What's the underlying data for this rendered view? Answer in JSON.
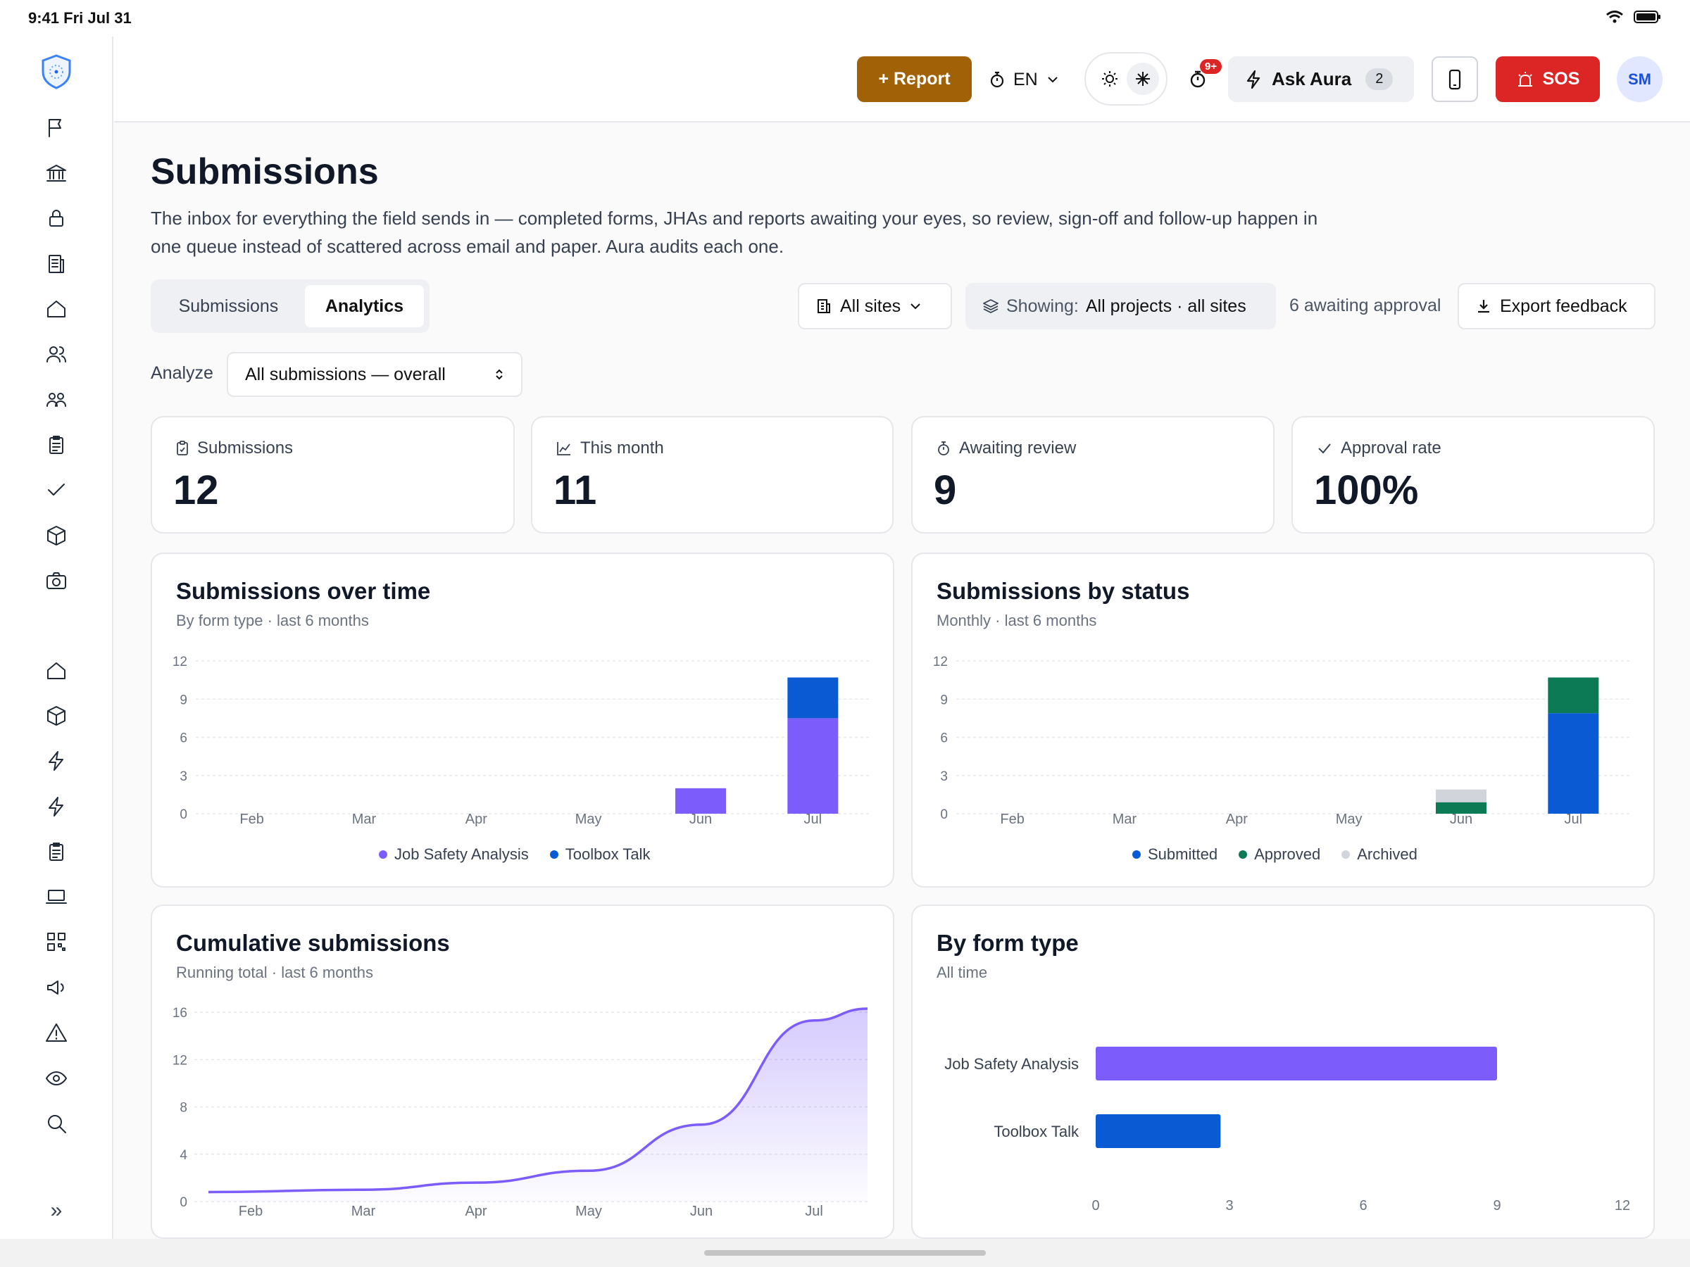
{
  "status_bar": {
    "time": "9:41 Fri Jul 31"
  },
  "sidebar": {
    "icons": [
      "flag-icon",
      "bank-icon",
      "lock-icon",
      "document-icon",
      "home-icon",
      "users-icon",
      "team-icon",
      "clipboard-icon",
      "check-icon",
      "cube-icon",
      "camera-icon",
      "home-icon",
      "cube-icon",
      "lightning-icon",
      "lightning-icon",
      "clipboard-icon",
      "laptop-icon",
      "qr-icon",
      "megaphone-icon",
      "warning-icon",
      "eye-icon",
      "search-icon"
    ],
    "expand_label": "»"
  },
  "topbar": {
    "report_label": "+ Report",
    "language": "EN",
    "notification_badge": "9+",
    "ask_label": "Ask Aura",
    "ask_count": "2",
    "sos_label": "SOS",
    "avatar_initials": "SM"
  },
  "page": {
    "title": "Submissions",
    "description": "The inbox for everything the field sends in — completed forms, JHAs and reports awaiting your eyes, so review, sign-off and follow-up happen in one queue instead of scattered across email and paper. Aura audits each one."
  },
  "tabs": [
    {
      "label": "Submissions",
      "active": false
    },
    {
      "label": "Analytics",
      "active": true
    }
  ],
  "filters": {
    "sites_label": "All sites",
    "showing_label": "Showing:",
    "showing_value": "All projects · all sites",
    "awaiting_text": "6 awaiting approval",
    "export_label": "Export feedback"
  },
  "analyze": {
    "label": "Analyze",
    "selected": "All submissions — overall"
  },
  "stats": [
    {
      "label": "Submissions",
      "value": "12",
      "icon": "clipboard-icon"
    },
    {
      "label": "This month",
      "value": "11",
      "icon": "line-chart-icon"
    },
    {
      "label": "Awaiting review",
      "value": "9",
      "icon": "stopwatch-icon"
    },
    {
      "label": "Approval rate",
      "value": "100%",
      "icon": "check-icon"
    }
  ],
  "charts": {
    "over_time": {
      "title": "Submissions over time",
      "subtitle": "By form type · last 6 months"
    },
    "by_status": {
      "title": "Submissions by status",
      "subtitle": "Monthly · last 6 months"
    },
    "cumulative": {
      "title": "Cumulative submissions",
      "subtitle": "Running total · last 6 months"
    },
    "by_form": {
      "title": "By form type",
      "subtitle": "All time"
    }
  },
  "colors": {
    "jsa": "#7c5cfa",
    "toolbox": "#0a5bd3",
    "submitted": "#0a5bd3",
    "approved": "#0b7a55",
    "archived": "#d1d5db",
    "brand_report": "#a16207",
    "sos": "#dc2626"
  },
  "chart_data": [
    {
      "type": "bar",
      "stacked": true,
      "categories": [
        "Feb",
        "Mar",
        "Apr",
        "May",
        "Jun",
        "Jul"
      ],
      "series": [
        {
          "name": "Job Safety Analysis",
          "values": [
            0,
            0,
            0,
            0,
            2,
            7.5
          ]
        },
        {
          "name": "Toolbox Talk",
          "values": [
            0,
            0,
            0,
            0,
            0,
            3.2
          ]
        }
      ],
      "yticks": [
        0,
        3,
        6,
        9,
        12
      ],
      "ylim": [
        0,
        12
      ],
      "grid": true,
      "legend": "bottom"
    },
    {
      "type": "bar",
      "stacked": true,
      "categories": [
        "Feb",
        "Mar",
        "Apr",
        "May",
        "Jun",
        "Jul"
      ],
      "series": [
        {
          "name": "Submitted",
          "values": [
            0,
            0,
            0,
            0,
            0,
            7.9
          ]
        },
        {
          "name": "Approved",
          "values": [
            0,
            0,
            0,
            0,
            0.9,
            2.8
          ]
        },
        {
          "name": "Archived",
          "values": [
            0,
            0,
            0,
            0,
            1.0,
            0
          ]
        }
      ],
      "yticks": [
        0,
        3,
        6,
        9,
        12
      ],
      "ylim": [
        0,
        12
      ],
      "grid": true,
      "legend": "bottom"
    },
    {
      "type": "area",
      "categories": [
        "Feb",
        "Mar",
        "Apr",
        "May",
        "Jun",
        "Jul"
      ],
      "series": [
        {
          "x": [
            0,
            1,
            2,
            3,
            4,
            5,
            5.5
          ],
          "values": [
            0.8,
            1.0,
            1.6,
            2.6,
            6.5,
            15.3,
            16.3
          ]
        }
      ],
      "yticks": [
        0,
        4,
        8,
        12,
        16
      ],
      "ylim": [
        0,
        16
      ],
      "grid": true
    },
    {
      "type": "bar",
      "orientation": "horizontal",
      "categories": [
        "Job Safety Analysis",
        "Toolbox Talk"
      ],
      "values": [
        9,
        2.8
      ],
      "xticks": [
        0,
        3,
        6,
        9,
        12
      ],
      "xlim": [
        0,
        12
      ]
    }
  ]
}
